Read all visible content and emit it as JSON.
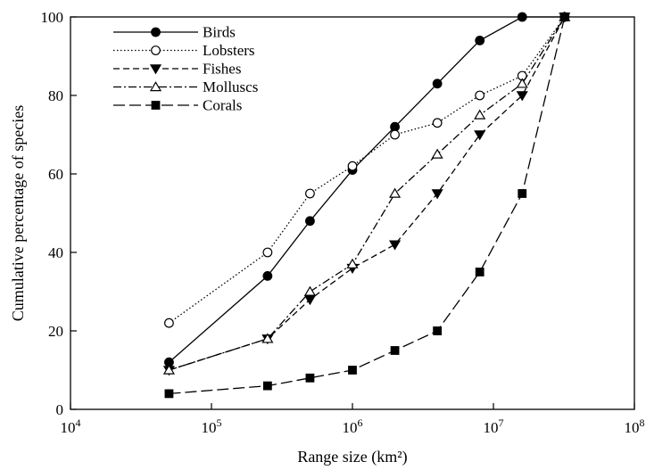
{
  "chart_data": {
    "type": "line",
    "xlabel": "Range size (km²)",
    "ylabel": "Cumulative percentage of species",
    "x_scale": "log",
    "xlim": [
      10000,
      100000000
    ],
    "ylim": [
      0,
      100
    ],
    "x_ticks": [
      {
        "value": 10000,
        "base": "10",
        "exp": "4"
      },
      {
        "value": 100000,
        "base": "10",
        "exp": "5"
      },
      {
        "value": 1000000,
        "base": "10",
        "exp": "6"
      },
      {
        "value": 10000000,
        "base": "10",
        "exp": "7"
      },
      {
        "value": 100000000,
        "base": "10",
        "exp": "8"
      }
    ],
    "y_ticks": [
      0,
      20,
      40,
      60,
      80,
      100
    ],
    "grid": false,
    "legend_position": "top-left",
    "series": [
      {
        "name": "Birds",
        "marker": "filled-circle",
        "dash": "solid",
        "color": "#000000",
        "x": [
          50000,
          250000,
          500000,
          1000000,
          2000000,
          4000000,
          8000000,
          16000000,
          32000000
        ],
        "y": [
          12,
          34,
          48,
          61,
          72,
          83,
          94,
          100,
          100
        ]
      },
      {
        "name": "Lobsters",
        "marker": "open-circle",
        "dash": "dotted",
        "color": "#000000",
        "x": [
          50000,
          250000,
          500000,
          1000000,
          2000000,
          4000000,
          8000000,
          16000000,
          32000000
        ],
        "y": [
          22,
          40,
          55,
          62,
          70,
          73,
          80,
          85,
          100
        ]
      },
      {
        "name": "Fishes",
        "marker": "filled-triangle-down",
        "dash": "dashed",
        "color": "#000000",
        "x": [
          50000,
          250000,
          500000,
          1000000,
          2000000,
          4000000,
          8000000,
          16000000,
          32000000
        ],
        "y": [
          10,
          18,
          28,
          36,
          42,
          55,
          70,
          80,
          100
        ]
      },
      {
        "name": "Molluscs",
        "marker": "open-triangle-up",
        "dash": "dash-dot",
        "color": "#000000",
        "x": [
          50000,
          250000,
          500000,
          1000000,
          2000000,
          4000000,
          8000000,
          16000000,
          32000000
        ],
        "y": [
          10,
          18,
          30,
          37,
          55,
          65,
          75,
          83,
          100
        ]
      },
      {
        "name": "Corals",
        "marker": "filled-square",
        "dash": "long-dash",
        "color": "#000000",
        "x": [
          50000,
          250000,
          500000,
          1000000,
          2000000,
          4000000,
          8000000,
          16000000,
          32000000
        ],
        "y": [
          4,
          6,
          8,
          10,
          15,
          20,
          35,
          55,
          100
        ]
      }
    ]
  }
}
